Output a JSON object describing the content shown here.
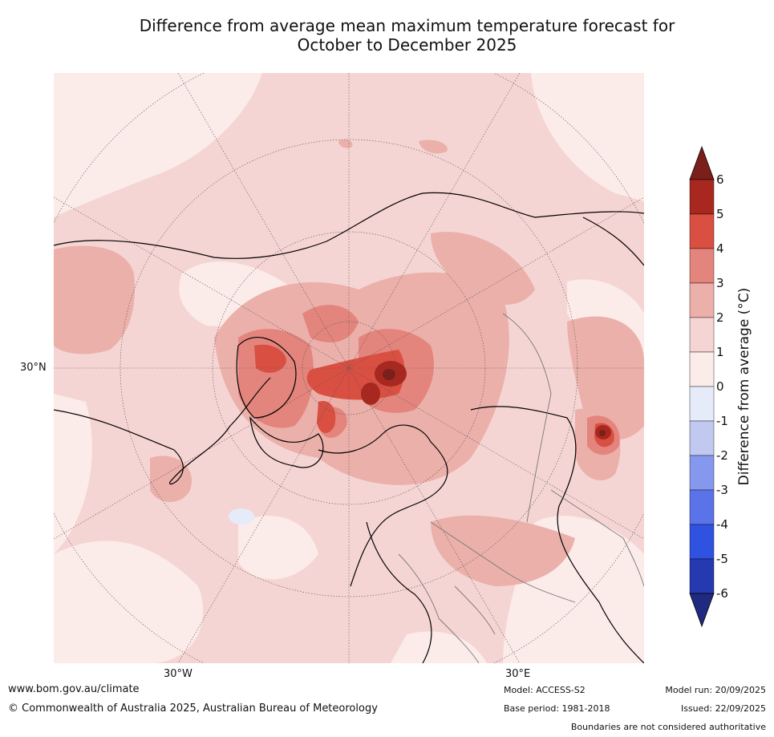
{
  "title": {
    "line1": "Difference from average mean maximum temperature forecast for",
    "line2": "October to December 2025"
  },
  "map": {
    "projection": "north polar stereographic",
    "lat_labels": [
      "30°N"
    ],
    "lon_labels": [
      "30°W",
      "30°E"
    ],
    "colors": {
      "ocean_base": "#f5d5d3",
      "light_0_1": "#fbebe9",
      "warm_2_3": "#ebb0aa",
      "warm_3_4": "#e3857d",
      "warm_4_5": "#d94f42",
      "warm_5_6": "#a8281f",
      "warm_over_6": "#7a1f1a",
      "cool_0_m1": "#e6ebfa"
    }
  },
  "colorbar": {
    "title": "Difference from average (°C)",
    "ticks": [
      "6",
      "5",
      "4",
      "3",
      "2",
      "1",
      "0",
      "-1",
      "-2",
      "-3",
      "-4",
      "-5",
      "-6"
    ],
    "colors": [
      "#a8281f",
      "#d94f42",
      "#e3857d",
      "#ebb0aa",
      "#f5d5d3",
      "#fbebe9",
      "#e6ebfa",
      "#c2c9f0",
      "#8598ee",
      "#5b73e8",
      "#2f52e0",
      "#2539b0"
    ],
    "over_color": "#7a1f1a",
    "under_color": "#1f2a80"
  },
  "footer": {
    "website": "www.bom.gov.au/climate",
    "copyright": "© Commonwealth of Australia 2025, Australian Bureau of Meteorology",
    "model": "Model: ACCESS-S2",
    "base_period": "Base period: 1981-2018",
    "model_run": "Model run: 20/09/2025",
    "issued": "Issued: 22/09/2025",
    "disclaimer": "Boundaries are not considered authoritative"
  }
}
